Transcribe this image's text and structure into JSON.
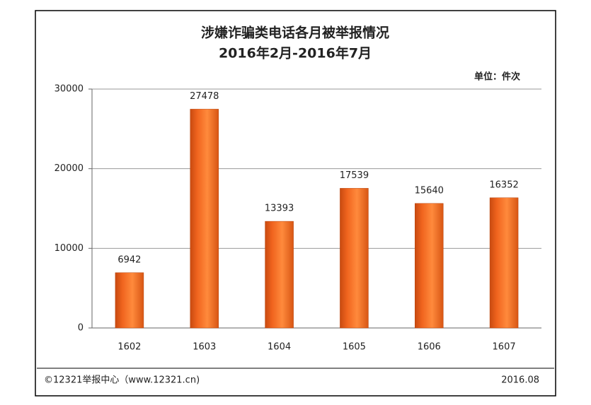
{
  "chart_data": {
    "type": "bar",
    "title": "涉嫌诈骗类电话各月被举报情况",
    "subtitle": "2016年2月-2016年7月",
    "unit_label": "单位：件次",
    "categories": [
      "1602",
      "1603",
      "1604",
      "1605",
      "1606",
      "1607"
    ],
    "values": [
      6942,
      27478,
      13393,
      17539,
      15640,
      16352
    ],
    "color": "#f0641e",
    "ylim": [
      0,
      30000
    ],
    "yticks": [
      0,
      10000,
      20000,
      30000
    ],
    "grid": true,
    "source": "©12321举报中心（www.12321.cn)",
    "date": "2016.08"
  }
}
